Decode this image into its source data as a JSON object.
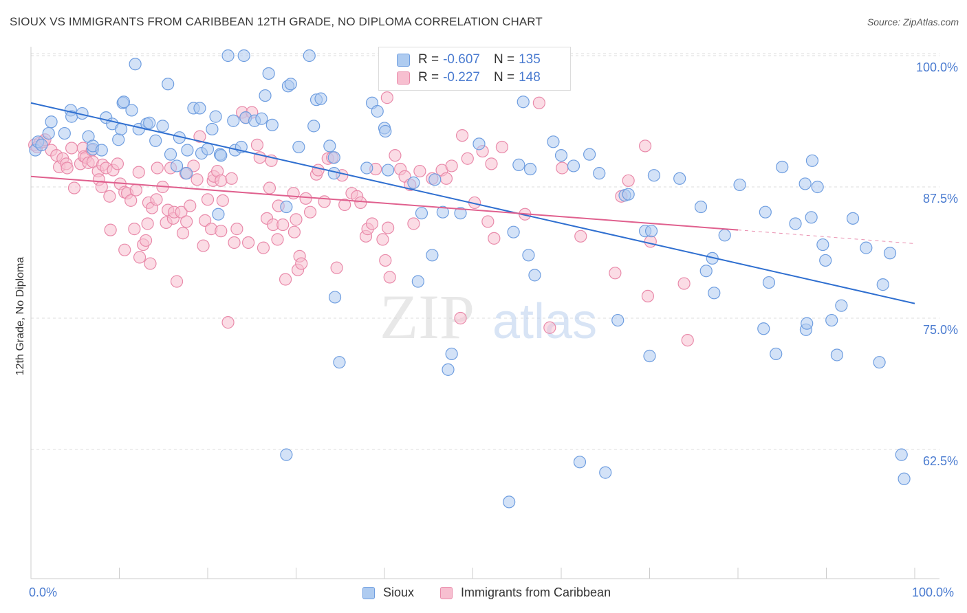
{
  "title": "SIOUX VS IMMIGRANTS FROM CARIBBEAN 12TH GRADE, NO DIPLOMA CORRELATION CHART",
  "source": "Source: ZipAtlas.com",
  "watermark": {
    "zip": "ZIP",
    "atlas": "atlas"
  },
  "legend": {
    "series1": {
      "r_label": "R =",
      "r_value": "-0.607",
      "n_label": "N =",
      "n_value": "135"
    },
    "series2": {
      "r_label": "R =",
      "r_value": "-0.227",
      "n_label": "N =",
      "n_value": "148"
    }
  },
  "bottom_legend": {
    "series1": "Sioux",
    "series2": "Immigrants from Caribbean"
  },
  "colors": {
    "blue_fill": "#aecbf0",
    "blue_stroke": "#6f9ee0",
    "blue_line": "#2f6fd0",
    "pink_fill": "#f7bfd0",
    "pink_stroke": "#e98aaa",
    "pink_line": "#e0608e",
    "tick_text": "#4a7bd0",
    "grid": "#dddddd"
  },
  "chart_data": {
    "type": "scatter",
    "title": "SIOUX VS IMMIGRANTS FROM CARIBBEAN 12TH GRADE, NO DIPLOMA CORRELATION CHART",
    "xlabel": "",
    "ylabel": "12th Grade, No Diploma",
    "x_tick_labels": [
      "0.0%",
      "100.0%"
    ],
    "y_tick_labels": [
      "100.0%",
      "87.5%",
      "75.0%",
      "62.5%"
    ],
    "xlim": [
      0,
      100
    ],
    "ylim": [
      52,
      101
    ],
    "y_ticks": [
      100,
      87.5,
      75,
      62.5
    ],
    "grid": "horizontal dashed",
    "legend_position": "top-center",
    "series": [
      {
        "name": "Sioux",
        "r": -0.607,
        "n": 135,
        "trend": {
          "x": [
            0,
            100
          ],
          "y": [
            95.5,
            76.4
          ]
        },
        "points": [
          [
            0.5,
            91.0
          ],
          [
            0.8,
            91.8
          ],
          [
            1.2,
            91.5
          ],
          [
            2,
            92.6
          ],
          [
            2.3,
            93.7
          ],
          [
            3.8,
            92.6
          ],
          [
            4.5,
            94.8
          ],
          [
            4.6,
            94.2
          ],
          [
            5.8,
            94.5
          ],
          [
            6.5,
            92.3
          ],
          [
            7,
            91.1
          ],
          [
            7,
            91.4
          ],
          [
            8,
            91.0
          ],
          [
            8.5,
            94.1
          ],
          [
            9.2,
            93.5
          ],
          [
            9.9,
            92.0
          ],
          [
            10.2,
            93.0
          ],
          [
            10.4,
            95.5
          ],
          [
            10.5,
            95.6
          ],
          [
            11.4,
            94.8
          ],
          [
            11.8,
            99.2
          ],
          [
            12.2,
            93.0
          ],
          [
            13.1,
            93.5
          ],
          [
            13.4,
            93.6
          ],
          [
            14.1,
            91.9
          ],
          [
            14.9,
            93.3
          ],
          [
            15.5,
            97.3
          ],
          [
            15.8,
            90.6
          ],
          [
            16.5,
            89.5
          ],
          [
            16.8,
            92.2
          ],
          [
            17.6,
            88.8
          ],
          [
            17.7,
            91.0
          ],
          [
            18.4,
            95.0
          ],
          [
            19.1,
            95.0
          ],
          [
            19.3,
            90.7
          ],
          [
            20.0,
            91.1
          ],
          [
            20.5,
            93.0
          ],
          [
            20.9,
            94.2
          ],
          [
            21.2,
            84.9
          ],
          [
            21.4,
            90.6
          ],
          [
            21.5,
            90.5
          ],
          [
            22.3,
            100.0
          ],
          [
            22.9,
            93.8
          ],
          [
            23.1,
            91.0
          ],
          [
            23.8,
            91.3
          ],
          [
            24.1,
            100.0
          ],
          [
            24.3,
            94.1
          ],
          [
            25.3,
            93.8
          ],
          [
            26.1,
            94.0
          ],
          [
            26.5,
            96.2
          ],
          [
            26.9,
            98.3
          ],
          [
            27.3,
            93.4
          ],
          [
            28.9,
            62.0
          ],
          [
            28.9,
            85.6
          ],
          [
            29.1,
            97.1
          ],
          [
            29.4,
            97.3
          ],
          [
            30.3,
            91.3
          ],
          [
            31.5,
            100.0
          ],
          [
            32.0,
            93.3
          ],
          [
            32.3,
            95.8
          ],
          [
            32.8,
            95.9
          ],
          [
            33.8,
            91.4
          ],
          [
            34.3,
            88.8
          ],
          [
            34.3,
            90.3
          ],
          [
            34.4,
            77.0
          ],
          [
            34.9,
            70.8
          ],
          [
            38.0,
            89.3
          ],
          [
            38.6,
            95.5
          ],
          [
            39.2,
            94.7
          ],
          [
            40.0,
            93.1
          ],
          [
            40.1,
            92.8
          ],
          [
            40.4,
            89.1
          ],
          [
            42.0,
            100.0
          ],
          [
            43.3,
            87.9
          ],
          [
            43.8,
            78.5
          ],
          [
            44.2,
            85.0
          ],
          [
            45.4,
            81.0
          ],
          [
            45.7,
            88.2
          ],
          [
            46.6,
            85.1
          ],
          [
            47.2,
            70.1
          ],
          [
            47.6,
            71.6
          ],
          [
            48.6,
            85.0
          ],
          [
            50.7,
            91.6
          ],
          [
            54.1,
            57.5
          ],
          [
            54.6,
            83.2
          ],
          [
            55.2,
            89.6
          ],
          [
            55.7,
            95.6
          ],
          [
            56.3,
            81.0
          ],
          [
            56.5,
            89.2
          ],
          [
            57.0,
            79.1
          ],
          [
            59.1,
            91.8
          ],
          [
            60.0,
            90.5
          ],
          [
            61.4,
            89.5
          ],
          [
            62.1,
            61.3
          ],
          [
            63.2,
            90.6
          ],
          [
            64.3,
            88.8
          ],
          [
            65.0,
            60.3
          ],
          [
            66.4,
            74.8
          ],
          [
            67.2,
            86.7
          ],
          [
            67.6,
            86.8
          ],
          [
            69.5,
            83.3
          ],
          [
            70.0,
            71.4
          ],
          [
            70.2,
            83.3
          ],
          [
            70.5,
            88.6
          ],
          [
            73.4,
            88.3
          ],
          [
            75.8,
            85.6
          ],
          [
            76.4,
            79.5
          ],
          [
            77.1,
            80.7
          ],
          [
            77.3,
            77.4
          ],
          [
            78.5,
            82.9
          ],
          [
            80.2,
            87.7
          ],
          [
            82.9,
            74.0
          ],
          [
            83.1,
            85.1
          ],
          [
            83.5,
            78.4
          ],
          [
            84.3,
            71.6
          ],
          [
            85.0,
            89.4
          ],
          [
            86.5,
            84.0
          ],
          [
            87.6,
            87.8
          ],
          [
            87.7,
            73.9
          ],
          [
            87.8,
            74.5
          ],
          [
            88.3,
            84.6
          ],
          [
            88.4,
            90.0
          ],
          [
            89.0,
            87.5
          ],
          [
            89.6,
            82.0
          ],
          [
            89.9,
            80.5
          ],
          [
            90.6,
            74.8
          ],
          [
            91.2,
            71.5
          ],
          [
            91.7,
            76.2
          ],
          [
            93.0,
            84.5
          ],
          [
            94.5,
            81.7
          ],
          [
            96.0,
            70.8
          ],
          [
            96.4,
            78.2
          ],
          [
            97.2,
            81.2
          ],
          [
            98.5,
            62.0
          ],
          [
            98.8,
            59.7
          ]
        ]
      },
      {
        "name": "Immigrants from Caribbean",
        "r": -0.227,
        "n": 148,
        "trend": {
          "x": [
            0,
            80
          ],
          "y": [
            88.5,
            83.4
          ]
        },
        "trend_dashed": {
          "x": [
            80,
            100
          ],
          "y": [
            83.4,
            82.1
          ]
        },
        "points": [
          [
            0.4,
            91.5
          ],
          [
            0.7,
            91.3
          ],
          [
            1.0,
            91.7
          ],
          [
            1.4,
            91.8
          ],
          [
            1.6,
            92.0
          ],
          [
            2.3,
            91.0
          ],
          [
            2.9,
            90.5
          ],
          [
            3.2,
            89.4
          ],
          [
            3.6,
            90.2
          ],
          [
            4.0,
            89.7
          ],
          [
            4.1,
            89.3
          ],
          [
            4.6,
            91.2
          ],
          [
            4.9,
            87.4
          ],
          [
            5.6,
            89.7
          ],
          [
            5.9,
            91.2
          ],
          [
            6.0,
            90.4
          ],
          [
            6.2,
            90.3
          ],
          [
            6.5,
            89.8
          ],
          [
            6.9,
            91.0
          ],
          [
            7.0,
            89.9
          ],
          [
            7.6,
            89.0
          ],
          [
            7.7,
            88.2
          ],
          [
            8.0,
            87.5
          ],
          [
            8.1,
            89.6
          ],
          [
            8.5,
            89.3
          ],
          [
            8.9,
            86.6
          ],
          [
            9.0,
            83.4
          ],
          [
            9.3,
            89.1
          ],
          [
            9.8,
            89.7
          ],
          [
            10.1,
            87.8
          ],
          [
            10.6,
            87.0
          ],
          [
            10.6,
            81.5
          ],
          [
            10.9,
            86.9
          ],
          [
            11.3,
            86.2
          ],
          [
            11.7,
            83.5
          ],
          [
            11.9,
            87.2
          ],
          [
            12.2,
            88.9
          ],
          [
            12.3,
            80.8
          ],
          [
            12.7,
            82.0
          ],
          [
            13.0,
            82.4
          ],
          [
            13.2,
            84.0
          ],
          [
            13.3,
            86.0
          ],
          [
            13.5,
            80.2
          ],
          [
            13.7,
            85.5
          ],
          [
            14.2,
            86.3
          ],
          [
            14.3,
            89.3
          ],
          [
            14.9,
            87.5
          ],
          [
            15.3,
            84.1
          ],
          [
            15.5,
            85.3
          ],
          [
            15.8,
            89.3
          ],
          [
            16.1,
            84.5
          ],
          [
            16.2,
            85.1
          ],
          [
            16.5,
            78.5
          ],
          [
            17.0,
            85.1
          ],
          [
            17.2,
            83.1
          ],
          [
            17.5,
            88.8
          ],
          [
            17.6,
            84.2
          ],
          [
            18.0,
            85.7
          ],
          [
            18.4,
            89.5
          ],
          [
            18.8,
            88.2
          ],
          [
            19.1,
            92.3
          ],
          [
            19.5,
            81.9
          ],
          [
            19.7,
            84.3
          ],
          [
            20.0,
            86.3
          ],
          [
            20.4,
            83.5
          ],
          [
            20.6,
            88.1
          ],
          [
            20.7,
            88.5
          ],
          [
            21.1,
            89.0
          ],
          [
            21.5,
            88.1
          ],
          [
            21.5,
            83.3
          ],
          [
            21.7,
            86.2
          ],
          [
            22.3,
            74.6
          ],
          [
            22.7,
            88.3
          ],
          [
            23.0,
            82.2
          ],
          [
            23.3,
            83.5
          ],
          [
            23.9,
            94.6
          ],
          [
            24.3,
            94.1
          ],
          [
            24.6,
            82.2
          ],
          [
            25.0,
            94.6
          ],
          [
            25.6,
            91.5
          ],
          [
            25.9,
            90.3
          ],
          [
            26.3,
            81.7
          ],
          [
            26.7,
            84.5
          ],
          [
            27.0,
            87.4
          ],
          [
            27.2,
            90.0
          ],
          [
            27.4,
            83.9
          ],
          [
            27.9,
            82.5
          ],
          [
            28.0,
            85.7
          ],
          [
            28.5,
            83.9
          ],
          [
            28.8,
            78.7
          ],
          [
            29.7,
            86.9
          ],
          [
            29.8,
            83.2
          ],
          [
            30.0,
            84.4
          ],
          [
            30.2,
            79.6
          ],
          [
            30.4,
            80.9
          ],
          [
            30.6,
            80.2
          ],
          [
            31.1,
            86.4
          ],
          [
            31.6,
            85.1
          ],
          [
            32.3,
            88.7
          ],
          [
            32.5,
            89.1
          ],
          [
            33.2,
            86.1
          ],
          [
            33.6,
            90.2
          ],
          [
            34.1,
            90.3
          ],
          [
            34.6,
            79.8
          ],
          [
            35.2,
            88.6
          ],
          [
            35.5,
            85.8
          ],
          [
            36.3,
            86.9
          ],
          [
            36.9,
            86.6
          ],
          [
            37.3,
            86.0
          ],
          [
            37.9,
            82.8
          ],
          [
            38.1,
            83.5
          ],
          [
            38.6,
            84.0
          ],
          [
            39.0,
            89.2
          ],
          [
            39.8,
            82.5
          ],
          [
            40.1,
            80.5
          ],
          [
            40.3,
            96.0
          ],
          [
            40.4,
            83.6
          ],
          [
            40.6,
            78.9
          ],
          [
            41.2,
            90.5
          ],
          [
            41.8,
            89.2
          ],
          [
            42.3,
            88.5
          ],
          [
            42.9,
            87.7
          ],
          [
            43.3,
            84.0
          ],
          [
            44.0,
            89.0
          ],
          [
            45.4,
            88.3
          ],
          [
            46.5,
            89.1
          ],
          [
            47.0,
            88.3
          ],
          [
            47.6,
            89.5
          ],
          [
            48.6,
            75.0
          ],
          [
            48.8,
            92.4
          ],
          [
            49.4,
            90.2
          ],
          [
            50.2,
            86.0
          ],
          [
            51.1,
            90.9
          ],
          [
            51.7,
            84.2
          ],
          [
            52.1,
            89.7
          ],
          [
            52.4,
            82.6
          ],
          [
            53.3,
            91.3
          ],
          [
            55.9,
            84.9
          ],
          [
            57.5,
            95.5
          ],
          [
            58.7,
            74.1
          ],
          [
            60.1,
            89.3
          ],
          [
            62.2,
            82.8
          ],
          [
            66.1,
            79.3
          ],
          [
            66.8,
            86.6
          ],
          [
            67.6,
            88.1
          ],
          [
            69.5,
            91.4
          ],
          [
            69.8,
            77.1
          ],
          [
            70.1,
            82.3
          ],
          [
            73.9,
            78.3
          ],
          [
            74.3,
            72.9
          ]
        ]
      }
    ]
  }
}
